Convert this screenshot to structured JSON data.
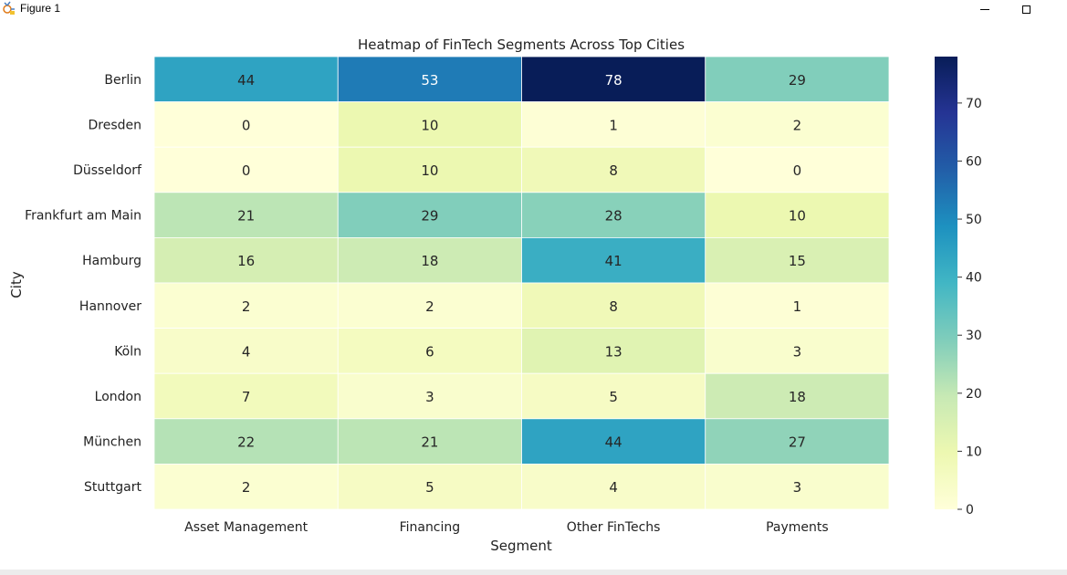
{
  "window": {
    "title": "Figure 1"
  },
  "chart_data": {
    "type": "heatmap",
    "title": "Heatmap of FinTech Segments Across Top Cities",
    "xlabel": "Segment",
    "ylabel": "City",
    "columns": [
      "Asset Management",
      "Financing",
      "Other FinTechs",
      "Payments"
    ],
    "rows": [
      "Berlin",
      "Dresden",
      "Düsseldorf",
      "Frankfurt am Main",
      "Hamburg",
      "Hannover",
      "Köln",
      "London",
      "München",
      "Stuttgart"
    ],
    "values": [
      [
        44,
        53,
        78,
        29
      ],
      [
        0,
        10,
        1,
        2
      ],
      [
        0,
        10,
        8,
        0
      ],
      [
        21,
        29,
        28,
        10
      ],
      [
        16,
        18,
        41,
        15
      ],
      [
        2,
        2,
        8,
        1
      ],
      [
        4,
        6,
        13,
        3
      ],
      [
        7,
        3,
        5,
        18
      ],
      [
        22,
        21,
        44,
        27
      ],
      [
        2,
        5,
        4,
        3
      ]
    ],
    "vmin": 0,
    "vmax": 78,
    "colormap": "YlGnBu",
    "colorbar_ticks": [
      0,
      10,
      20,
      30,
      40,
      50,
      60,
      70
    ],
    "annotated": true,
    "grid": false,
    "legend": "colorbar-right"
  }
}
